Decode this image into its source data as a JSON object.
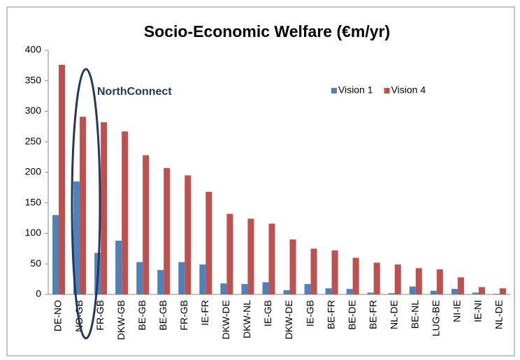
{
  "chart_data": {
    "type": "bar",
    "title": "Socio-Economic Welfare (€m/yr)",
    "annotations": [
      "NorthConnect"
    ],
    "categories": [
      "DE-NO",
      "NO-GB",
      "FR-GB",
      "DKW-GB",
      "BE-GB",
      "BE-GB",
      "FR-GB",
      "IE-FR",
      "DKW-DE",
      "DKW-NL",
      "IE-GB",
      "DKW-DE",
      "IE-GB",
      "BE-FR",
      "BE-DE",
      "BE-FR",
      "NL-DE",
      "BE-NL",
      "LUG-BE",
      "NI-IE",
      "IE-NI",
      "NL-DE"
    ],
    "series": [
      {
        "name": "Vision 1",
        "color": "#4f81bd",
        "values": [
          130,
          185,
          68,
          88,
          53,
          40,
          53,
          49,
          18,
          17,
          20,
          7,
          17,
          10,
          9,
          3,
          2,
          13,
          6,
          9,
          3,
          1
        ]
      },
      {
        "name": "Vision 4",
        "color": "#c0504d",
        "values": [
          376,
          291,
          282,
          267,
          228,
          207,
          195,
          168,
          132,
          124,
          116,
          90,
          75,
          72,
          60,
          52,
          49,
          43,
          41,
          28,
          12,
          10
        ]
      }
    ],
    "ylim": [
      0,
      400
    ],
    "yticks": [
      0,
      50,
      100,
      150,
      200,
      250,
      300,
      350,
      400
    ],
    "grid": false,
    "legend": "top-right"
  }
}
